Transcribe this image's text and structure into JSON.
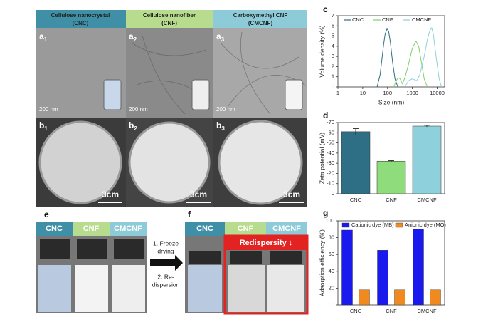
{
  "photo_panels": {
    "headers": [
      {
        "name": "Cellulose nanocrystal",
        "abbr": "(CNC)"
      },
      {
        "name": "Cellulose nanofiber",
        "abbr": "(CNF)"
      },
      {
        "name": "Carboxymethyl CNF",
        "abbr": "(CMCNF)"
      }
    ],
    "tem_labels": [
      {
        "letter": "a",
        "sub": "1"
      },
      {
        "letter": "a",
        "sub": "2"
      },
      {
        "letter": "a",
        "sub": "3"
      }
    ],
    "film_labels": [
      {
        "letter": "b",
        "sub": "1"
      },
      {
        "letter": "b",
        "sub": "2"
      },
      {
        "letter": "b",
        "sub": "3"
      }
    ],
    "tem_scale": [
      "200 nm",
      "200 nm",
      "200 nm"
    ],
    "film_scale": [
      "3cm",
      "3cm",
      "3cm"
    ],
    "panel_e": "e",
    "panel_f": "f",
    "vials_e": [
      "CNC",
      "CNF",
      "CMCNF"
    ],
    "vials_f": [
      "CNC",
      "CNF",
      "CMCNF"
    ],
    "redispersity": "Redispersity ↓",
    "step1": [
      "1. Freeze",
      "drying"
    ],
    "step2": [
      "2. Re-",
      "dispersion"
    ]
  },
  "panel_labels": [
    "c",
    "d",
    "g"
  ],
  "chart_data": [
    {
      "type": "line",
      "xlabel": "Size (nm)",
      "ylabel": "Volume density (%)",
      "log_x": true,
      "xlim": [
        1,
        20000
      ],
      "xticks": [
        1,
        10,
        100,
        1000,
        10000
      ],
      "ylim": [
        0,
        7
      ],
      "yticks": [
        0,
        1,
        2,
        3,
        4,
        5,
        6,
        7
      ],
      "legend": "top",
      "series": [
        {
          "name": "CNC",
          "color": "#2e6f80",
          "x": [
            38,
            50,
            60,
            70,
            80,
            95,
            110,
            130,
            160,
            200,
            260
          ],
          "values": [
            0,
            1.2,
            2.8,
            4.2,
            5.2,
            5.7,
            5.5,
            4.4,
            2.4,
            0.8,
            0
          ]
        },
        {
          "name": "CNF",
          "color": "#7fcf6f",
          "x": [
            180,
            220,
            270,
            320,
            400,
            500,
            700,
            1000,
            1400,
            1800,
            2300,
            3000,
            4000
          ],
          "values": [
            0,
            0.6,
            0.9,
            0.8,
            0.3,
            0.9,
            2.2,
            3.8,
            4.5,
            4.0,
            2.5,
            0.8,
            0
          ]
        },
        {
          "name": "CMCNF",
          "color": "#8fd0dd",
          "x": [
            500,
            700,
            1000,
            1500,
            2000,
            3000,
            4000,
            5000,
            6000,
            7000,
            9000,
            12000,
            15000
          ],
          "values": [
            0,
            0.6,
            0.8,
            0.6,
            1.2,
            3.0,
            4.6,
            5.5,
            5.8,
            5.2,
            3.0,
            0.8,
            0
          ]
        }
      ]
    },
    {
      "type": "bar",
      "ylabel": "Zeta potential (mV)",
      "categories": [
        "CNC",
        "CNF",
        "CMCNF"
      ],
      "values": [
        -61,
        -32,
        -66.5
      ],
      "errors": [
        3,
        0.5,
        0.8
      ],
      "colors": [
        "#2e6f85",
        "#8fdc7c",
        "#8fd0dd"
      ],
      "ylim": [
        0,
        -70
      ],
      "yticks": [
        0,
        -10,
        -20,
        -30,
        -40,
        -50,
        -60,
        -70
      ]
    },
    {
      "type": "grouped_bar",
      "ylabel": "Adsorption efficiency (%)",
      "categories": [
        "CNC",
        "CNF",
        "CMCNF"
      ],
      "legend": "top",
      "ylim": [
        0,
        100
      ],
      "yticks": [
        0,
        20,
        40,
        60,
        80,
        100
      ],
      "series": [
        {
          "name": "Cationic dye (MB)",
          "color": "#1a1aee",
          "values": [
            89,
            65,
            90
          ]
        },
        {
          "name": "Anionic dye (MO)",
          "color": "#f08a1f",
          "values": [
            18,
            18,
            18
          ]
        }
      ]
    }
  ]
}
